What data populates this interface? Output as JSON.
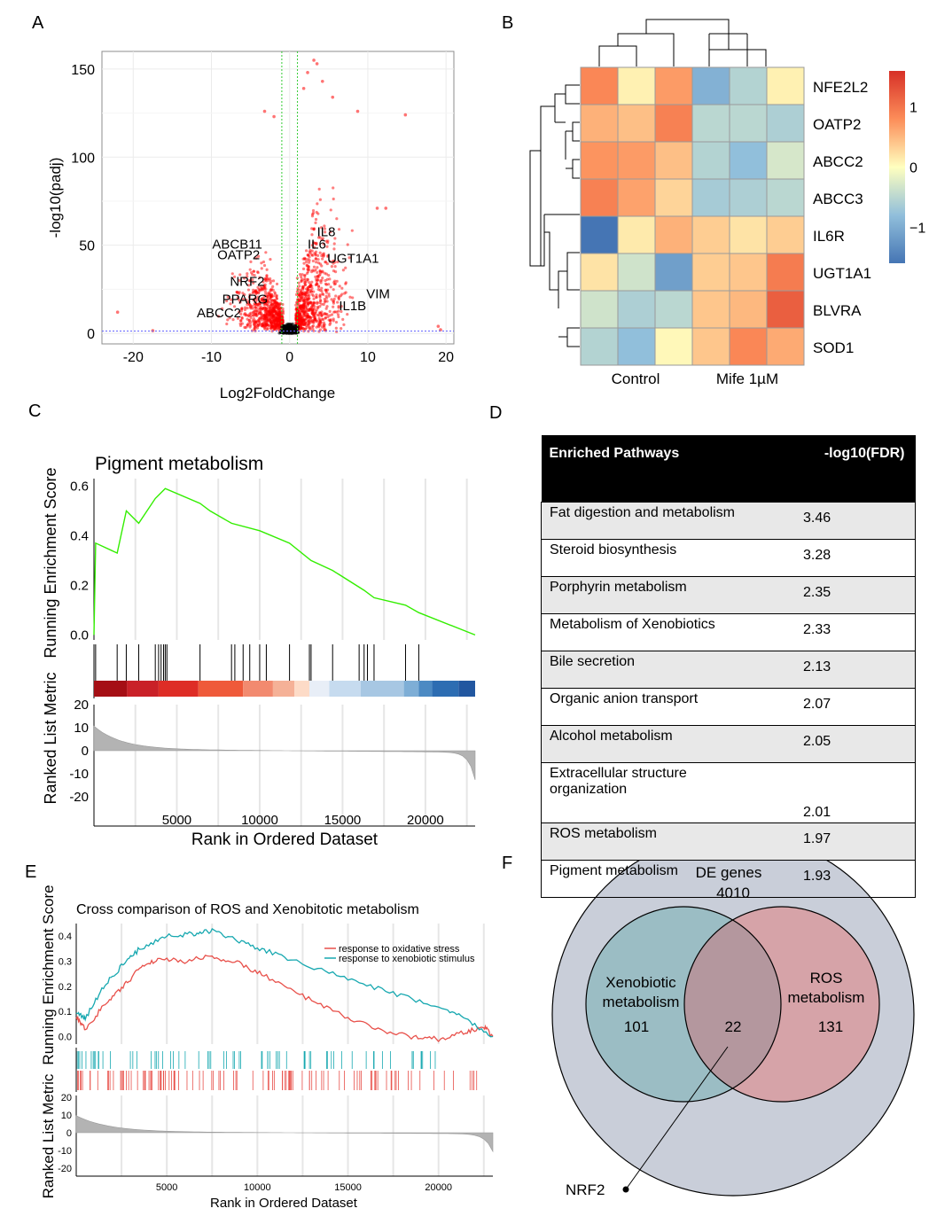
{
  "panel_labels": [
    "A",
    "B",
    "C",
    "D",
    "E",
    "F"
  ],
  "colors": {
    "volcano_points": "#ff0000",
    "volcano_ns": "#000000",
    "threshold_vline": "#33cc33",
    "threshold_hline": "#6666ff",
    "gsea_curve": "#33ee00",
    "ros_series": "#e8504a",
    "xeno_series": "#17a8b0",
    "venn_outer": "#c9ced9",
    "venn_xeno": "#9bbdc4",
    "venn_ros": "#d6a3a8",
    "venn_overlap": "#b4979e"
  },
  "chart_data": [
    {
      "panel": "A",
      "type": "scatter",
      "title": "",
      "xlabel": "Log2FoldChange",
      "ylabel": "-log10(padj)",
      "xlim": [
        -24,
        21
      ],
      "ylim": [
        -6,
        160
      ],
      "xticks": [
        -20,
        -10,
        0,
        10,
        20
      ],
      "yticks": [
        0,
        50,
        100,
        150
      ],
      "grid": true,
      "thresholds": {
        "log2fc": [
          -1,
          1
        ],
        "padj_line": 1.3
      },
      "labels": [
        {
          "text": "ABCB11",
          "x": -3.5,
          "y": 48
        },
        {
          "text": "OATP2",
          "x": -3.8,
          "y": 42
        },
        {
          "text": "NRF2",
          "x": -3.2,
          "y": 27
        },
        {
          "text": "PPARG",
          "x": -2.8,
          "y": 17
        },
        {
          "text": "ABCC2",
          "x": -6.2,
          "y": 9
        },
        {
          "text": "IL8",
          "x": 3.5,
          "y": 55
        },
        {
          "text": "IL6",
          "x": 2.3,
          "y": 48
        },
        {
          "text": "UGT1A1",
          "x": 4.8,
          "y": 40
        },
        {
          "text": "VIM",
          "x": 9.8,
          "y": 20
        },
        {
          "text": "IL1B",
          "x": 6.3,
          "y": 13
        }
      ],
      "outliers": [
        {
          "x": -22,
          "y": 12
        },
        {
          "x": -17.5,
          "y": 1.5
        },
        {
          "x": 19,
          "y": 4
        },
        {
          "x": 19.3,
          "y": 2
        },
        {
          "x": 14.8,
          "y": 124
        },
        {
          "x": 11.2,
          "y": 71
        },
        {
          "x": 12.3,
          "y": 71
        },
        {
          "x": -3.2,
          "y": 126
        },
        {
          "x": -2,
          "y": 123
        },
        {
          "x": 3.1,
          "y": 155
        },
        {
          "x": 3.5,
          "y": 153
        },
        {
          "x": 2.3,
          "y": 148
        },
        {
          "x": 4.2,
          "y": 143
        },
        {
          "x": 1.8,
          "y": 139
        },
        {
          "x": 5.5,
          "y": 134
        },
        {
          "x": 8.7,
          "y": 126
        }
      ]
    },
    {
      "panel": "B",
      "type": "heatmap",
      "rows": [
        "NFE2L2",
        "OATP2",
        "ABCC2",
        "ABCC3",
        "IL6R",
        "UGT1A1",
        "BLVRA",
        "SOD1"
      ],
      "groups": [
        "Control",
        "Mife 1µM"
      ],
      "values": [
        [
          0.85,
          0.1,
          0.7,
          -0.95,
          -0.55,
          0.1
        ],
        [
          0.55,
          0.45,
          0.9,
          -0.5,
          -0.5,
          -0.6
        ],
        [
          0.75,
          0.7,
          0.45,
          -0.55,
          -0.8,
          -0.3
        ],
        [
          0.9,
          0.65,
          0.3,
          -0.65,
          -0.6,
          -0.5
        ],
        [
          -1.6,
          0.15,
          0.55,
          0.35,
          0.2,
          0.35
        ],
        [
          0.2,
          -0.35,
          -1.15,
          0.35,
          0.4,
          0.95
        ],
        [
          -0.35,
          -0.6,
          -0.5,
          0.4,
          0.5,
          1.2
        ],
        [
          -0.55,
          -0.8,
          0.05,
          0.4,
          0.85,
          0.6
        ]
      ],
      "colorbar_ticks": [
        "1",
        "0",
        "−1"
      ],
      "colorbar_range": [
        -1.6,
        1.6
      ]
    },
    {
      "panel": "C",
      "type": "line",
      "title": "Pigment metabolism",
      "xlabel": "Rank in Ordered Dataset",
      "ylabel_top": "Running Enrichment Score",
      "ylabel_bottom": "Ranked List Metric",
      "xlim": [
        0,
        23000
      ],
      "xticks": [
        5000,
        10000,
        15000,
        20000
      ],
      "es_ylim": [
        -0.02,
        0.63
      ],
      "es_yticks": [
        0.0,
        0.2,
        0.4,
        0.6
      ],
      "metric_yticks": [
        20,
        10,
        0,
        -10,
        -20
      ],
      "hits": [
        100,
        1400,
        1950,
        2700,
        3700,
        3900,
        4050,
        4200,
        4300,
        4400,
        6400,
        8300,
        8500,
        9000,
        9400,
        10000,
        10400,
        11800,
        13000,
        13100,
        14400,
        16000,
        16300,
        16500,
        16900,
        18800,
        19600
      ],
      "es": [
        [
          0,
          0
        ],
        [
          100,
          0.37
        ],
        [
          1400,
          0.33
        ],
        [
          1950,
          0.5
        ],
        [
          2700,
          0.45
        ],
        [
          3700,
          0.55
        ],
        [
          4300,
          0.59
        ],
        [
          6400,
          0.53
        ],
        [
          7000,
          0.5
        ],
        [
          8300,
          0.45
        ],
        [
          10000,
          0.42
        ],
        [
          11800,
          0.37
        ],
        [
          13100,
          0.3
        ],
        [
          14400,
          0.26
        ],
        [
          16300,
          0.18
        ],
        [
          16900,
          0.15
        ],
        [
          18800,
          0.12
        ],
        [
          19600,
          0.09
        ],
        [
          23000,
          0.0
        ]
      ]
    },
    {
      "panel": "E",
      "type": "line",
      "title": "Cross comparison of ROS and Xenobitotic metabolism",
      "xlabel": "Rank in Ordered Dataset",
      "ylabel_top": "Running Enrichment Score",
      "ylabel_bottom": "Ranked List Metric",
      "xlim": [
        0,
        23000
      ],
      "xticks": [
        5000,
        10000,
        15000,
        20000
      ],
      "es_ylim": [
        -0.03,
        0.45
      ],
      "es_yticks": [
        0.0,
        0.1,
        0.2,
        0.3,
        0.4
      ],
      "metric_yticks": [
        20,
        10,
        0,
        -10,
        -20
      ],
      "series": [
        {
          "name": "response to oxidative stress",
          "points": [
            [
              0,
              0.08
            ],
            [
              500,
              0.03
            ],
            [
              1500,
              0.12
            ],
            [
              2500,
              0.19
            ],
            [
              3500,
              0.27
            ],
            [
              4500,
              0.31
            ],
            [
              6000,
              0.3
            ],
            [
              7500,
              0.32
            ],
            [
              9000,
              0.29
            ],
            [
              10500,
              0.24
            ],
            [
              12500,
              0.16
            ],
            [
              14500,
              0.09
            ],
            [
              16500,
              0.03
            ],
            [
              18500,
              0.0
            ],
            [
              20000,
              -0.01
            ],
            [
              21500,
              0.02
            ],
            [
              22500,
              0.04
            ],
            [
              23000,
              0.0
            ]
          ]
        },
        {
          "name": "response to xenobiotic stimulus",
          "points": [
            [
              0,
              0.1
            ],
            [
              500,
              0.07
            ],
            [
              1500,
              0.2
            ],
            [
              2500,
              0.28
            ],
            [
              3500,
              0.35
            ],
            [
              5000,
              0.4
            ],
            [
              6500,
              0.41
            ],
            [
              7500,
              0.42
            ],
            [
              9000,
              0.38
            ],
            [
              10500,
              0.34
            ],
            [
              12500,
              0.29
            ],
            [
              15000,
              0.23
            ],
            [
              17500,
              0.17
            ],
            [
              20000,
              0.12
            ],
            [
              21500,
              0.07
            ],
            [
              23000,
              0.0
            ]
          ]
        }
      ]
    }
  ],
  "table": {
    "header": {
      "pathway": "Enriched Pathways",
      "value": "-log10(FDR)"
    },
    "rows": [
      {
        "pathway": "Fat digestion and metabolism",
        "value": "3.46"
      },
      {
        "pathway": "Steroid biosynthesis",
        "value": "3.28"
      },
      {
        "pathway": "Porphyrin metabolism",
        "value": "2.35"
      },
      {
        "pathway": "Metabolism of Xenobiotics",
        "value": "2.33"
      },
      {
        "pathway": "Bile secretion",
        "value": "2.13"
      },
      {
        "pathway": "Organic anion transport",
        "value": "2.07"
      },
      {
        "pathway": "Alcohol metabolism",
        "value": "2.05"
      },
      {
        "pathway": "Extracellular structure organization",
        "value": "2.01"
      },
      {
        "pathway": "ROS metabolism",
        "value": "1.97"
      },
      {
        "pathway": "Pigment metabolism",
        "value": "1.93"
      }
    ]
  },
  "venn": {
    "outer_label": "DE genes",
    "outer_count": "4010",
    "left_label_1": "Xenobiotic",
    "left_label_2": "metabolism",
    "left_count": "101",
    "right_label_1": "ROS",
    "right_label_2": "metabolism",
    "right_count": "131",
    "overlap_count": "22",
    "callout": "NRF2"
  }
}
